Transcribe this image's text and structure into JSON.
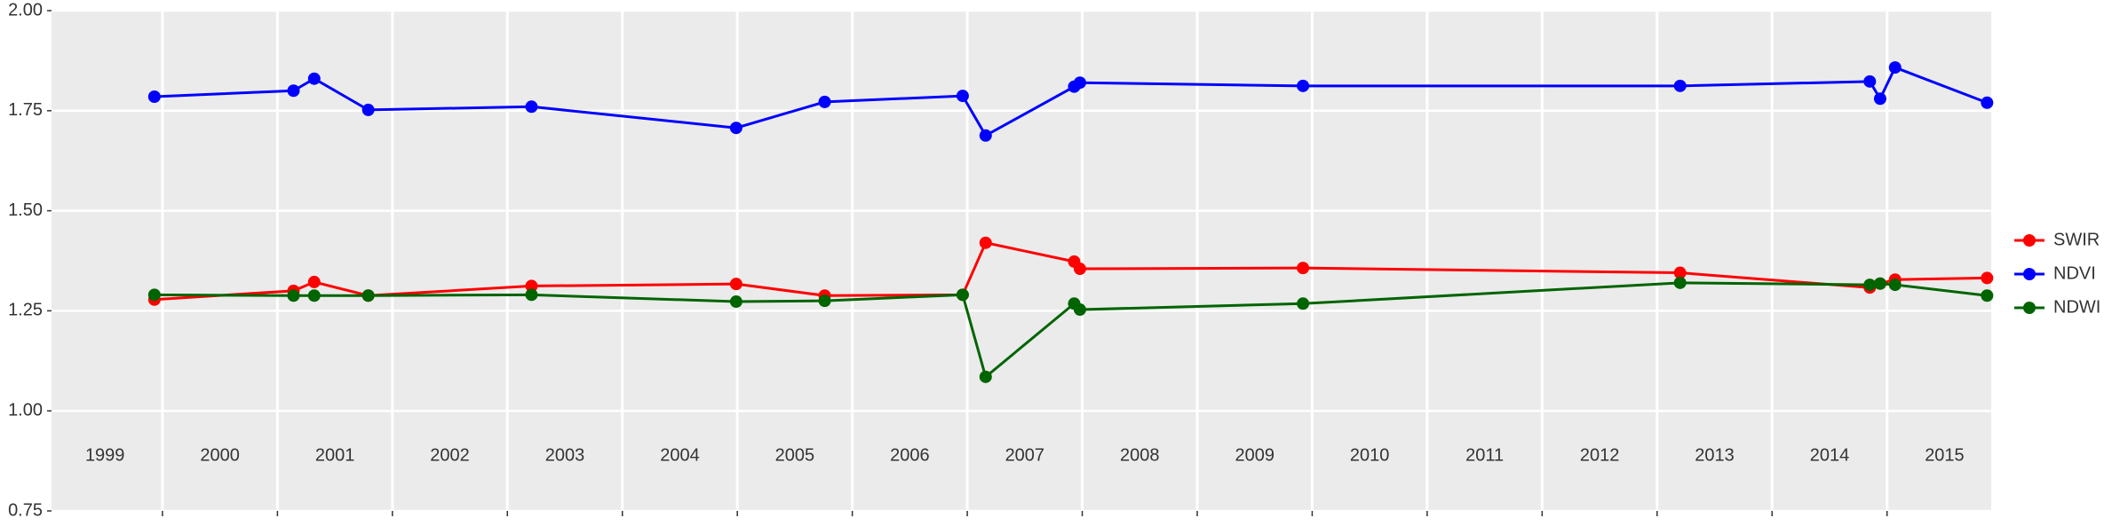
{
  "chart_data": {
    "type": "line",
    "xlim": [
      1999.035,
      2015.906
    ],
    "xgrid": [
      2000,
      2001,
      2002,
      2003,
      2004,
      2005,
      2006,
      2007,
      2008,
      2009,
      2010,
      2011,
      2012,
      2013,
      2014,
      2015
    ],
    "xticks": [
      {
        "value": 1999.5,
        "label": "1999"
      },
      {
        "value": 2000.5,
        "label": "2000"
      },
      {
        "value": 2001.5,
        "label": "2001"
      },
      {
        "value": 2002.5,
        "label": "2002"
      },
      {
        "value": 2003.5,
        "label": "2003"
      },
      {
        "value": 2004.5,
        "label": "2004"
      },
      {
        "value": 2005.5,
        "label": "2005"
      },
      {
        "value": 2006.5,
        "label": "2006"
      },
      {
        "value": 2007.5,
        "label": "2007"
      },
      {
        "value": 2008.5,
        "label": "2008"
      },
      {
        "value": 2009.5,
        "label": "2009"
      },
      {
        "value": 2010.5,
        "label": "2010"
      },
      {
        "value": 2011.5,
        "label": "2011"
      },
      {
        "value": 2012.5,
        "label": "2012"
      },
      {
        "value": 2013.5,
        "label": "2013"
      },
      {
        "value": 2014.5,
        "label": "2014"
      },
      {
        "value": 2015.5,
        "label": "2015"
      }
    ],
    "ylim": [
      0.75,
      2.0
    ],
    "yticks": [
      0.75,
      {
        "value": 1.0,
        "label": "1.00"
      },
      1.25,
      {
        "value": 1.5,
        "label": "1.50"
      },
      1.75,
      {
        "value": 2.0,
        "label": "2.00"
      }
    ],
    "grid": true,
    "legend": "right",
    "x": [
      1999.93,
      2001.14,
      2001.32,
      2001.79,
      2003.21,
      2004.99,
      2005.76,
      2006.96,
      2007.16,
      2007.93,
      2007.98,
      2009.92,
      2013.2,
      2014.85,
      2014.94,
      2015.07,
      2015.87
    ],
    "series": [
      {
        "name": "SWIR",
        "color": "#ff0000",
        "values": [
          1.278,
          1.3,
          1.322,
          1.288,
          1.312,
          1.317,
          1.288,
          1.29,
          1.42,
          1.373,
          1.355,
          1.357,
          1.345,
          1.308,
          1.318,
          1.328,
          1.332
        ]
      },
      {
        "name": "NDVI",
        "color": "#0000ff",
        "values": [
          1.785,
          1.8,
          1.83,
          1.752,
          1.76,
          1.707,
          1.772,
          1.787,
          1.688,
          1.81,
          1.82,
          1.812,
          1.812,
          1.823,
          1.78,
          1.858,
          1.77
        ]
      },
      {
        "name": "NDWI",
        "color": "#006400",
        "values": [
          1.29,
          1.288,
          1.288,
          1.288,
          1.29,
          1.273,
          1.275,
          1.29,
          1.085,
          1.268,
          1.253,
          1.268,
          1.32,
          1.315,
          1.318,
          1.315,
          1.288
        ]
      }
    ]
  }
}
